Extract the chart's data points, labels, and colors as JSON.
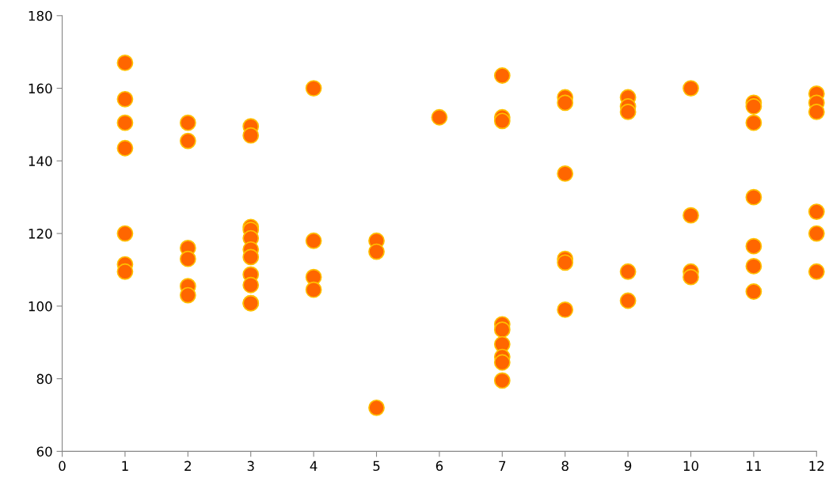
{
  "chart_data": {
    "type": "scatter",
    "x": [
      1,
      1,
      1,
      1,
      1,
      1,
      1,
      2,
      2,
      2,
      2,
      2,
      2,
      3,
      3,
      3,
      3,
      3,
      3,
      3,
      3,
      3,
      3,
      3,
      4,
      4,
      4,
      4,
      5,
      5,
      5,
      6,
      7,
      7,
      7,
      7,
      7,
      7,
      7,
      7,
      7,
      8,
      8,
      8,
      8,
      8,
      8,
      9,
      9,
      9,
      9,
      9,
      10,
      10,
      10,
      10,
      11,
      11,
      11,
      11,
      11,
      11,
      11,
      12,
      12,
      12,
      12,
      12,
      12
    ],
    "values": [
      167,
      157,
      150.5,
      143.5,
      120,
      111.5,
      109.5,
      150.5,
      145.5,
      116,
      113,
      105.5,
      103,
      149.5,
      147,
      121.8,
      121,
      118.7,
      115.6,
      113.5,
      108.7,
      105.8,
      100.8,
      100.8,
      160,
      118,
      108,
      104.5,
      118,
      115,
      72,
      152,
      163.5,
      152,
      151,
      95,
      93.5,
      89.5,
      86,
      84.5,
      79.5,
      157.5,
      156,
      136.5,
      113,
      112,
      99,
      157.5,
      155,
      153.5,
      109.5,
      101.5,
      160,
      125,
      109.5,
      108,
      156,
      155,
      150.5,
      130,
      116.5,
      111,
      104,
      158.5,
      156,
      153.5,
      126,
      120,
      109.5
    ],
    "color": "#ff6600",
    "marker": "circle",
    "grid": false,
    "xlim": [
      0,
      12
    ],
    "xticks": [
      0,
      1,
      2,
      3,
      4,
      5,
      6,
      7,
      8,
      9,
      10,
      11,
      12
    ],
    "ylim": [
      60,
      180
    ],
    "yticks": [
      60,
      80,
      100,
      120,
      140,
      160,
      180
    ]
  }
}
